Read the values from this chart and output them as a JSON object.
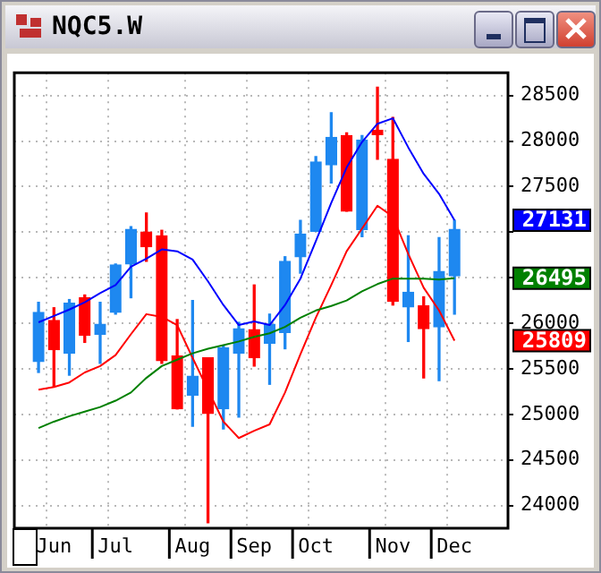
{
  "chart_data": {
    "type": "candlestick",
    "title": "NQC5.W",
    "categories": [
      null,
      "Jun",
      null,
      null,
      null,
      "Jul",
      null,
      null,
      null,
      null,
      "Aug",
      null,
      null,
      null,
      "Sep",
      null,
      null,
      null,
      "Oct",
      null,
      null,
      null,
      null,
      "Nov",
      null,
      null,
      null,
      "Dec"
    ],
    "ohlc": [
      [
        25580,
        26230,
        25460,
        26120
      ],
      [
        26030,
        26170,
        25310,
        25710
      ],
      [
        25670,
        26260,
        25430,
        26220
      ],
      [
        26280,
        26310,
        25790,
        25870
      ],
      [
        25880,
        26230,
        25560,
        25990
      ],
      [
        26120,
        26650,
        26100,
        26640
      ],
      [
        26650,
        27060,
        26280,
        27030
      ],
      [
        27000,
        27210,
        26680,
        26840
      ],
      [
        26960,
        27020,
        25560,
        25590
      ],
      [
        25640,
        26040,
        25060,
        25060
      ],
      [
        25210,
        26250,
        24870,
        25420
      ],
      [
        25620,
        25620,
        23810,
        25010
      ],
      [
        25060,
        25750,
        24840,
        25730
      ],
      [
        25670,
        26010,
        24970,
        25940
      ],
      [
        25930,
        26420,
        25530,
        25620
      ],
      [
        25780,
        26100,
        25330,
        25990
      ],
      [
        25900,
        26730,
        25720,
        26680
      ],
      [
        26730,
        27130,
        26550,
        26980
      ],
      [
        27010,
        27830,
        27010,
        27770
      ],
      [
        27740,
        28310,
        27540,
        28040
      ],
      [
        28060,
        28090,
        27230,
        27230
      ],
      [
        27030,
        28060,
        26950,
        28010
      ],
      [
        28120,
        28590,
        27800,
        28070
      ],
      [
        27800,
        28260,
        26200,
        26240
      ],
      [
        26180,
        26960,
        25800,
        26340
      ],
      [
        26190,
        26290,
        25400,
        25940
      ],
      [
        25960,
        26940,
        25370,
        26570
      ],
      [
        26520,
        27130,
        26100,
        27030
      ]
    ],
    "colors": [
      "#1e88f0",
      "#ff0000",
      "#1e88f0",
      "#ff0000",
      "#1e88f0",
      "#1e88f0",
      "#1e88f0",
      "#ff0000",
      "#ff0000",
      "#ff0000",
      "#1e88f0",
      "#ff0000",
      "#1e88f0",
      "#1e88f0",
      "#ff0000",
      "#1e88f0",
      "#1e88f0",
      "#1e88f0",
      "#1e88f0",
      "#1e88f0",
      "#ff0000",
      "#1e88f0",
      "#ff0000",
      "#ff0000",
      "#1e88f0",
      "#ff0000",
      "#1e88f0",
      "#1e88f0"
    ],
    "series": [
      {
        "type": "line",
        "color": "#0000ff",
        "values": [
          26010,
          26080,
          26150,
          26230,
          26330,
          26420,
          26620,
          26710,
          26810,
          26790,
          26700,
          26460,
          26200,
          25980,
          26020,
          25980,
          26200,
          26490,
          26900,
          27320,
          27710,
          27990,
          28190,
          28250,
          27930,
          27640,
          27420,
          27131
        ]
      },
      {
        "type": "line",
        "color": "#008000",
        "values": [
          24850,
          24920,
          24980,
          25030,
          25080,
          25150,
          25240,
          25400,
          25530,
          25600,
          25670,
          25720,
          25760,
          25800,
          25850,
          25890,
          25960,
          26060,
          26140,
          26190,
          26250,
          26350,
          26430,
          26490,
          26490,
          26490,
          26480,
          26495
        ]
      },
      {
        "type": "line",
        "color": "#ff0000",
        "values": [
          25270,
          25300,
          25350,
          25460,
          25530,
          25650,
          25880,
          26100,
          26070,
          25980,
          25620,
          25270,
          24920,
          24740,
          24820,
          24890,
          25240,
          25660,
          26060,
          26420,
          26790,
          27040,
          27290,
          27170,
          26760,
          26390,
          26140,
          25809
        ]
      }
    ],
    "annotations": [
      "27131",
      "26495",
      "25809"
    ],
    "ylim": [
      23750,
      28750
    ],
    "yticks": [
      24000,
      24500,
      25000,
      25500,
      26000,
      {
        "value": 26500,
        "label": null
      },
      {
        "value": 27000,
        "label": null
      },
      27500,
      28000,
      28500
    ],
    "grid": true,
    "legend": false
  }
}
